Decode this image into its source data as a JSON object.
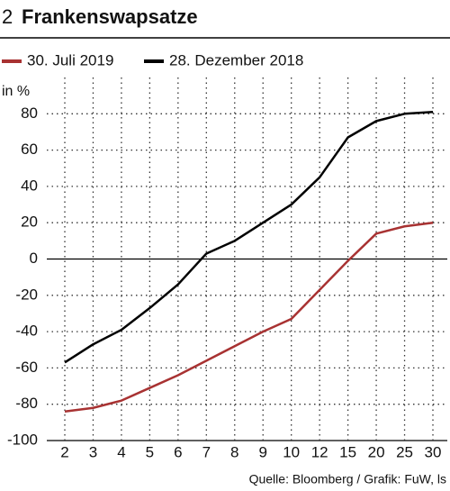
{
  "chart_data": {
    "type": "line",
    "number": "2",
    "title": "Frankenswapsatze",
    "y_label": "in %",
    "source": "Quelle: Bloomberg / Grafik: FuW, ls",
    "categories": [
      "2",
      "3",
      "4",
      "5",
      "6",
      "7",
      "8",
      "9",
      "10",
      "12",
      "15",
      "20",
      "25",
      "30"
    ],
    "series": [
      {
        "name": "30. Juli 2019",
        "color": "#a83232",
        "values": [
          -84,
          -82,
          -78,
          -71,
          -64,
          -56,
          -48,
          -40,
          -33,
          -17,
          -1,
          14,
          18,
          20
        ]
      },
      {
        "name": "28. Dezember 2018",
        "color": "#000000",
        "values": [
          -57,
          -47,
          -39,
          -27,
          -14,
          3,
          10,
          20,
          30,
          45,
          67,
          76,
          80,
          81
        ]
      }
    ],
    "ylim": [
      -100,
      100
    ],
    "yticks": [
      -100,
      -80,
      -60,
      -40,
      -20,
      0,
      20,
      40,
      60,
      80
    ],
    "grid": true
  }
}
